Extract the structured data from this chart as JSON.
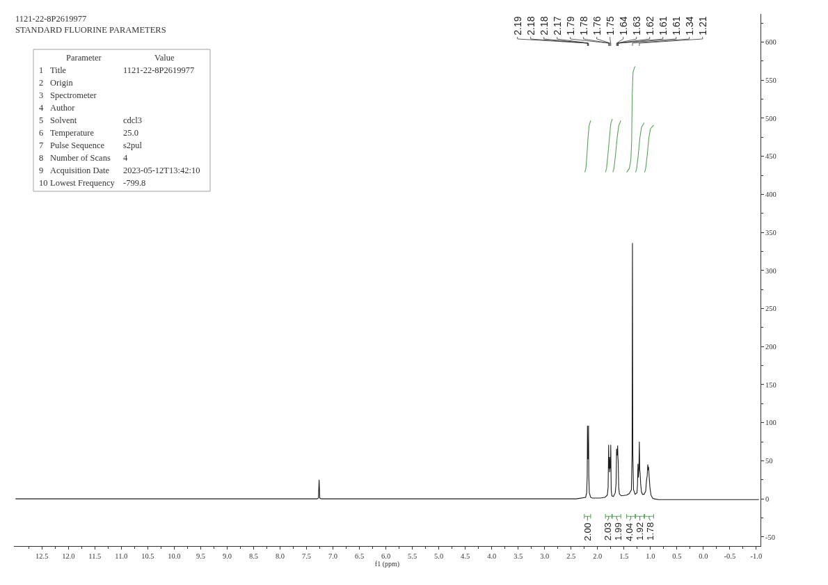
{
  "chart_data": {
    "type": "line",
    "title": "1121-22-8P2619977",
    "subtitle": "STANDARD FLUORINE PARAMETERS",
    "xlabel": "f1 (ppm)",
    "xlim": [
      13.03,
      -1.08
    ],
    "xticks": [
      {
        "value": 12.75,
        "label": null
      },
      {
        "value": 12.5,
        "label": "12.5"
      },
      {
        "value": 12.25,
        "label": null
      },
      {
        "value": 12.0,
        "label": "12.0"
      },
      {
        "value": 11.75,
        "label": null
      },
      {
        "value": 11.5,
        "label": "11.5"
      },
      {
        "value": 11.25,
        "label": null
      },
      {
        "value": 11.0,
        "label": "11.0"
      },
      {
        "value": 10.75,
        "label": null
      },
      {
        "value": 10.5,
        "label": "10.5"
      },
      {
        "value": 10.25,
        "label": null
      },
      {
        "value": 10.0,
        "label": "10.0"
      },
      {
        "value": 9.75,
        "label": null
      },
      {
        "value": 9.5,
        "label": "9.5"
      },
      {
        "value": 9.25,
        "label": null
      },
      {
        "value": 9.0,
        "label": "9.0"
      },
      {
        "value": 8.75,
        "label": null
      },
      {
        "value": 8.5,
        "label": "8.5"
      },
      {
        "value": 8.25,
        "label": null
      },
      {
        "value": 8.0,
        "label": "8.0"
      },
      {
        "value": 7.75,
        "label": null
      },
      {
        "value": 7.5,
        "label": "7.5"
      },
      {
        "value": 7.25,
        "label": null
      },
      {
        "value": 7.0,
        "label": "7.0"
      },
      {
        "value": 6.75,
        "label": null
      },
      {
        "value": 6.5,
        "label": "6.5"
      },
      {
        "value": 6.25,
        "label": null
      },
      {
        "value": 6.0,
        "label": "6.0"
      },
      {
        "value": 5.75,
        "label": null
      },
      {
        "value": 5.5,
        "label": "5.5"
      },
      {
        "value": 5.25,
        "label": null
      },
      {
        "value": 5.0,
        "label": "5.0"
      },
      {
        "value": 4.75,
        "label": null
      },
      {
        "value": 4.5,
        "label": "4.5"
      },
      {
        "value": 4.25,
        "label": null
      },
      {
        "value": 4.0,
        "label": "4.0"
      },
      {
        "value": 3.75,
        "label": null
      },
      {
        "value": 3.5,
        "label": "3.5"
      },
      {
        "value": 3.25,
        "label": null
      },
      {
        "value": 3.0,
        "label": "3.0"
      },
      {
        "value": 2.75,
        "label": null
      },
      {
        "value": 2.5,
        "label": "2.5"
      },
      {
        "value": 2.25,
        "label": null
      },
      {
        "value": 2.0,
        "label": "2.0"
      },
      {
        "value": 1.75,
        "label": null
      },
      {
        "value": 1.5,
        "label": "1.5"
      },
      {
        "value": 1.25,
        "label": null
      },
      {
        "value": 1.0,
        "label": "1.0"
      },
      {
        "value": 0.75,
        "label": null
      },
      {
        "value": 0.5,
        "label": "0.5"
      },
      {
        "value": 0.25,
        "label": null
      },
      {
        "value": 0.0,
        "label": "0.0"
      },
      {
        "value": -0.25,
        "label": null
      },
      {
        "value": -0.5,
        "label": "-0.5"
      },
      {
        "value": -0.75,
        "label": null
      },
      {
        "value": -1.0,
        "label": "-1.0"
      }
    ],
    "ylim": [
      -62,
      637
    ],
    "yticks": [
      -50,
      {
        "value": -25,
        "label": null
      },
      0,
      {
        "value": 25,
        "label": null
      },
      50,
      {
        "value": 75,
        "label": null
      },
      100,
      {
        "value": 125,
        "label": null
      },
      150,
      {
        "value": 175,
        "label": null
      },
      200,
      {
        "value": 225,
        "label": null
      },
      250,
      {
        "value": 275,
        "label": null
      },
      300,
      {
        "value": 325,
        "label": null
      },
      350,
      {
        "value": 375,
        "label": null
      },
      400,
      {
        "value": 425,
        "label": null
      },
      450,
      {
        "value": 475,
        "label": null
      },
      500,
      {
        "value": 525,
        "label": null
      },
      550,
      {
        "value": 575,
        "label": null
      },
      600,
      {
        "value": 625,
        "label": null
      }
    ],
    "series": [
      {
        "color": "#1a1a1a",
        "x": [
          13.0,
          7.3,
          7.275,
          7.262,
          7.25,
          7.22,
          2.4,
          2.225,
          2.205,
          2.195,
          2.19,
          2.185,
          2.18,
          2.175,
          2.17,
          2.165,
          2.155,
          2.13,
          2.1,
          1.95,
          1.86,
          1.815,
          1.8,
          1.79,
          1.785,
          1.78,
          1.77,
          1.76,
          1.755,
          1.75,
          1.742,
          1.73,
          1.7,
          1.665,
          1.65,
          1.64,
          1.635,
          1.63,
          1.625,
          1.62,
          1.615,
          1.61,
          1.6,
          1.585,
          1.55,
          1.45,
          1.4,
          1.36,
          1.347,
          1.34,
          1.333,
          1.32,
          1.29,
          1.255,
          1.245,
          1.236,
          1.228,
          1.218,
          1.21,
          1.202,
          1.195,
          1.185,
          1.17,
          1.15,
          1.12,
          1.09,
          1.075,
          1.062,
          1.05,
          1.042,
          1.035,
          1.025,
          1.01,
          0.99,
          0.96,
          0.93,
          0.85,
          -1.05
        ],
        "values": [
          0,
          0,
          1,
          25,
          1,
          0,
          0,
          2,
          8,
          30,
          96,
          52,
          72,
          52,
          96,
          30,
          8,
          2,
          1,
          1,
          2,
          5,
          15,
          71,
          40,
          55,
          35,
          55,
          40,
          71,
          12,
          4,
          3,
          8,
          20,
          66,
          57,
          62,
          57,
          70,
          55,
          50,
          15,
          6,
          4,
          5,
          7,
          12,
          60,
          336,
          60,
          12,
          6,
          8,
          18,
          46,
          28,
          40,
          75,
          38,
          34,
          20,
          9,
          6,
          6,
          10,
          24,
          30,
          45,
          38,
          42,
          30,
          15,
          5,
          1,
          0,
          -1,
          -1
        ]
      },
      {
        "color": "#56a456",
        "x": [
          2.24,
          2.22,
          2.2,
          2.18,
          2.16,
          2.13
        ],
        "values": [
          429,
          434,
          452,
          474,
          490,
          497
        ]
      },
      {
        "color": "#56a456",
        "x": [
          1.85,
          1.83,
          1.8,
          1.77,
          1.75,
          1.72
        ],
        "values": [
          429,
          434,
          455,
          478,
          493,
          499
        ]
      },
      {
        "color": "#56a456",
        "x": [
          1.71,
          1.69,
          1.66,
          1.63,
          1.6,
          1.56
        ],
        "values": [
          429,
          434,
          452,
          474,
          490,
          497
        ]
      },
      {
        "color": "#56a456",
        "x": [
          1.45,
          1.4,
          1.37,
          1.355,
          1.345,
          1.33,
          1.3,
          1.29
        ],
        "values": [
          429,
          434,
          445,
          470,
          530,
          560,
          567,
          568
        ]
      },
      {
        "color": "#56a456",
        "x": [
          1.28,
          1.26,
          1.23,
          1.2,
          1.17,
          1.12
        ],
        "values": [
          429,
          434,
          452,
          474,
          488,
          494
        ]
      },
      {
        "color": "#56a456",
        "x": [
          1.11,
          1.09,
          1.06,
          1.03,
          1.0,
          0.94
        ],
        "values": [
          429,
          434,
          452,
          474,
          486,
          491
        ]
      },
      {
        "color": "#56a456",
        "x": [
          2.25,
          2.25,
          2.25,
          2.13,
          2.13,
          2.13
        ],
        "values": [
          -20,
          -26,
          -23,
          -23,
          -20,
          -26
        ]
      },
      {
        "color": "#56a456",
        "x": [
          1.85,
          1.85,
          1.85,
          1.73,
          1.73,
          1.73
        ],
        "values": [
          -20,
          -26,
          -23,
          -23,
          -20,
          -26
        ]
      },
      {
        "color": "#56a456",
        "x": [
          1.72,
          1.72,
          1.72,
          1.56,
          1.56,
          1.56
        ],
        "values": [
          -20,
          -26,
          -23,
          -23,
          -20,
          -26
        ]
      },
      {
        "color": "#56a456",
        "x": [
          1.45,
          1.45,
          1.45,
          1.29,
          1.29,
          1.29
        ],
        "values": [
          -20,
          -26,
          -23,
          -23,
          -20,
          -26
        ]
      },
      {
        "color": "#56a456",
        "x": [
          1.28,
          1.28,
          1.28,
          1.12,
          1.12,
          1.12
        ],
        "values": [
          -20,
          -26,
          -23,
          -23,
          -20,
          -26
        ]
      },
      {
        "color": "#56a456",
        "x": [
          1.11,
          1.11,
          1.11,
          0.94,
          0.94,
          0.94
        ],
        "values": [
          -20,
          -26,
          -23,
          -23,
          -20,
          -26
        ]
      }
    ],
    "annotations": [
      {
        "text": "2.19",
        "x": 2.19
      },
      {
        "text": "2.18",
        "x": 2.18
      },
      {
        "text": "2.18",
        "x": 2.18
      },
      {
        "text": "2.17",
        "x": 2.17
      },
      {
        "text": "1.79",
        "x": 1.79
      },
      {
        "text": "1.78",
        "x": 1.78
      },
      {
        "text": "1.76",
        "x": 1.76
      },
      {
        "text": "1.75",
        "x": 1.75
      },
      {
        "text": "1.64",
        "x": 1.64
      },
      {
        "text": "1.63",
        "x": 1.63
      },
      {
        "text": "1.62",
        "x": 1.62
      },
      {
        "text": "1.61",
        "x": 1.61
      },
      {
        "text": "1.61",
        "x": 1.61
      },
      {
        "text": "1.34",
        "x": 1.34
      },
      {
        "text": "1.21",
        "x": 1.21
      },
      {
        "text": "2.00",
        "x": 2.19,
        "y": -23
      },
      {
        "text": "2.03",
        "x": 1.79,
        "y": -23
      },
      {
        "text": "1.99",
        "x": 1.64,
        "y": -23
      },
      {
        "text": "4.04",
        "x": 1.37,
        "y": -23
      },
      {
        "text": "1.92",
        "x": 1.2,
        "y": -23
      },
      {
        "text": "1.78",
        "x": 1.025,
        "y": -23
      },
      "Parameter",
      "Value",
      "1",
      "Title",
      "1121-22-8P2619977",
      "2",
      "Origin",
      "3",
      "Spectrometer",
      "4",
      "Author",
      "5",
      "Solvent",
      "cdcl3",
      "6",
      "Temperature",
      "25.0",
      "7",
      "Pulse Sequence",
      "s2pul",
      "8",
      "Number of Scans",
      "4",
      "9",
      "Acquisition Date",
      "2023-05-12T13:42:10",
      "10",
      "Lowest Frequency",
      "-799.8"
    ]
  }
}
